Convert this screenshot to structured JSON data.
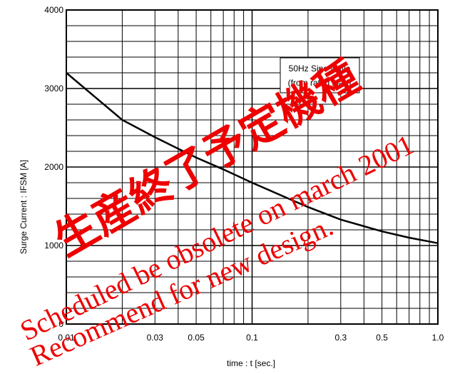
{
  "chart_data": {
    "type": "line",
    "title": "",
    "xlabel": "time : t [sec.]",
    "ylabel": "Surge Current :   IFSM [A]",
    "x_scale": "log",
    "xlim": [
      0.01,
      1.0
    ],
    "ylim": [
      0,
      4000
    ],
    "x_ticks": [
      {
        "value": 0.01,
        "label": "0.01"
      },
      {
        "value": 0.03,
        "label": "0.03"
      },
      {
        "value": 0.05,
        "label": "0.05"
      },
      {
        "value": 0.1,
        "label": "0.1"
      },
      {
        "value": 0.3,
        "label": "0.3"
      },
      {
        "value": 0.5,
        "label": "0.5"
      },
      {
        "value": 1.0,
        "label": "1.0"
      }
    ],
    "y_ticks": [
      {
        "value": 0,
        "label": "0"
      },
      {
        "value": 1000,
        "label": "1000"
      },
      {
        "value": 2000,
        "label": "2000"
      },
      {
        "value": 3000,
        "label": "3000"
      },
      {
        "value": 4000,
        "label": "4000"
      }
    ],
    "grid": true,
    "annotation": [
      "50Hz Sine wave",
      "(from rated load)"
    ],
    "series": [
      {
        "x": [
          0.01,
          0.02,
          0.03,
          0.05,
          0.07,
          0.1,
          0.2,
          0.3,
          0.5,
          0.7,
          1.0
        ],
        "y": [
          3200,
          2600,
          2380,
          2120,
          1970,
          1800,
          1490,
          1330,
          1180,
          1100,
          1030
        ]
      }
    ]
  },
  "watermark": {
    "lines": [
      "生産終了予定機種",
      "Scheduled be obsolete on march 2001",
      "Recommend for new design."
    ],
    "color": "#ee0000"
  }
}
